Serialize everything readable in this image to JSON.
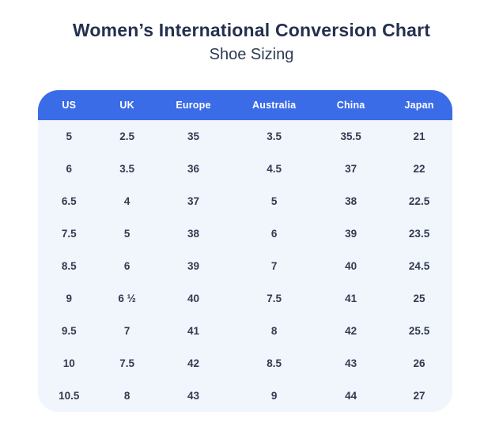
{
  "page": {
    "title": "Women’s International Conversion Chart",
    "subtitle": "Shoe Sizing"
  },
  "chart_data": {
    "type": "table",
    "title": "Women’s International Conversion Chart",
    "subtitle": "Shoe Sizing",
    "columns": [
      "US",
      "UK",
      "Europe",
      "Australia",
      "China",
      "Japan"
    ],
    "rows": [
      [
        "5",
        "2.5",
        "35",
        "3.5",
        "35.5",
        "21"
      ],
      [
        "6",
        "3.5",
        "36",
        "4.5",
        "37",
        "22"
      ],
      [
        "6.5",
        "4",
        "37",
        "5",
        "38",
        "22.5"
      ],
      [
        "7.5",
        "5",
        "38",
        "6",
        "39",
        "23.5"
      ],
      [
        "8.5",
        "6",
        "39",
        "7",
        "40",
        "24.5"
      ],
      [
        "9",
        "6 ½",
        "40",
        "7.5",
        "41",
        "25"
      ],
      [
        "9.5",
        "7",
        "41",
        "8",
        "42",
        "25.5"
      ],
      [
        "10",
        "7.5",
        "42",
        "8.5",
        "43",
        "26"
      ],
      [
        "10.5",
        "8",
        "43",
        "9",
        "44",
        "27"
      ]
    ],
    "column_widths_pct": [
      15,
      13,
      19,
      20,
      17,
      16
    ]
  },
  "colors": {
    "header_bg": "#3b6ce8",
    "header_text": "#ffffff",
    "body_bg": "#f1f5fc",
    "cell_text": "#323c50",
    "title_text": "#25304f",
    "page_bg": "#ffffff"
  }
}
